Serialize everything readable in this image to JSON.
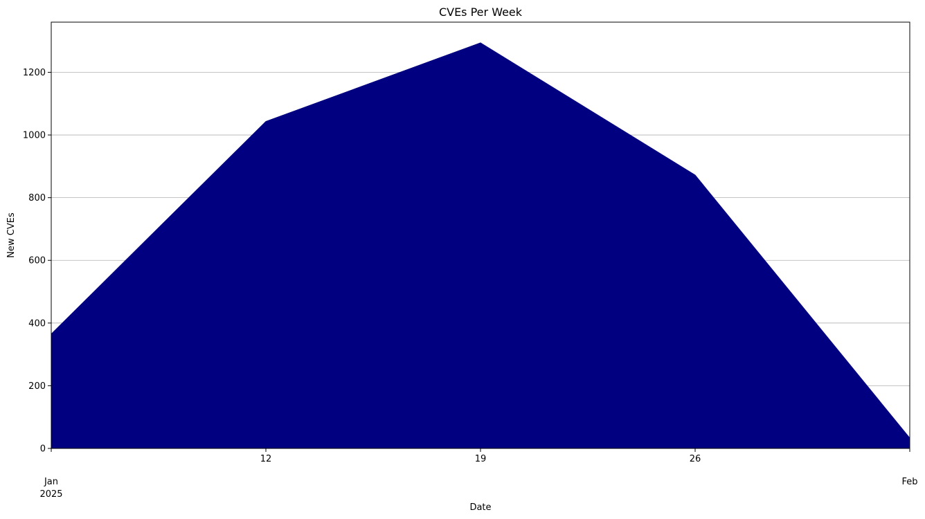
{
  "chart_data": {
    "type": "area",
    "title": "CVEs Per Week",
    "xlabel": "Date",
    "ylabel": "New CVEs",
    "x": [
      "2025-01-05",
      "2025-01-12",
      "2025-01-19",
      "2025-01-26",
      "2025-02-02"
    ],
    "values": [
      365,
      1043,
      1294,
      872,
      33
    ],
    "xlim": [
      "2025-01-05",
      "2025-02-02"
    ],
    "ylim": [
      0,
      1360
    ],
    "xticks": [
      {
        "x": "2025-01-05",
        "label": "Jan",
        "sublabel": "2025"
      },
      {
        "x": "2025-01-12",
        "label": "12"
      },
      {
        "x": "2025-01-19",
        "label": "19"
      },
      {
        "x": "2025-01-26",
        "label": "26"
      },
      {
        "x": "2025-02-02",
        "label": "Feb"
      }
    ],
    "yticks": [
      0,
      200,
      400,
      600,
      800,
      1000,
      1200
    ],
    "grid": "y",
    "fill_color": "#000080"
  }
}
